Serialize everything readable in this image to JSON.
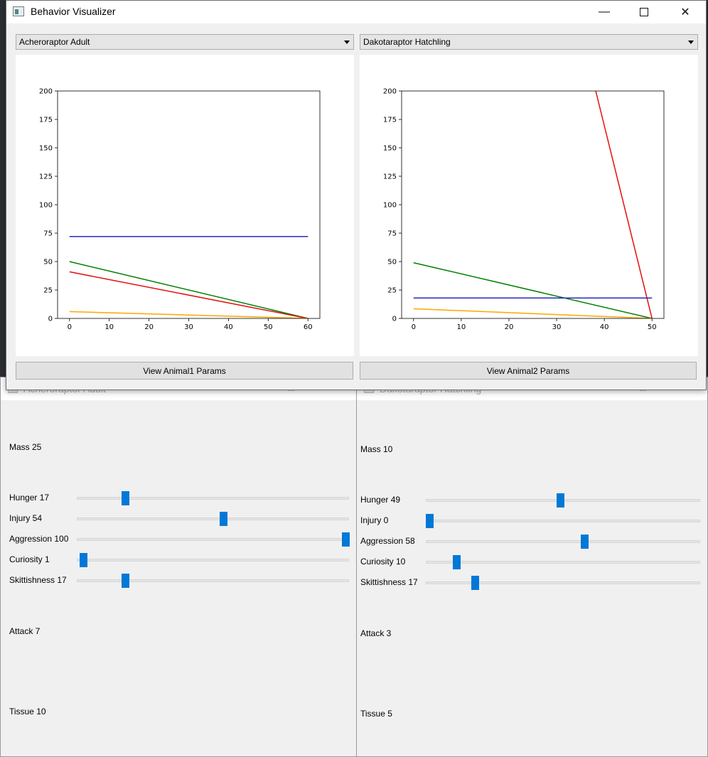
{
  "main_window": {
    "title": "Behavior Visualizer",
    "animal1_select": "Acheroraptor Adult",
    "animal2_select": "Dakotaraptor Hatchling",
    "button1_label": "View Animal1 Params",
    "button2_label": "View Animal2 Params"
  },
  "chart_data": [
    {
      "type": "line",
      "xlim": [
        -3,
        63
      ],
      "ylim": [
        0,
        200
      ],
      "xticks": [
        0,
        10,
        20,
        30,
        40,
        50,
        60
      ],
      "yticks": [
        0,
        25,
        50,
        75,
        100,
        125,
        150,
        175,
        200
      ],
      "xtick_labels": [
        "0",
        "10",
        "20",
        "30",
        "40",
        "50",
        "60"
      ],
      "ytick_labels": [
        "0",
        "25",
        "50",
        "75",
        "100",
        "125",
        "150",
        "175",
        "200"
      ],
      "series": [
        {
          "color": "#2a2ab8",
          "x": [
            0,
            60
          ],
          "y": [
            72,
            72
          ]
        },
        {
          "color": "#008000",
          "x": [
            0,
            60
          ],
          "y": [
            50,
            0
          ]
        },
        {
          "color": "#e01010",
          "x": [
            0,
            60
          ],
          "y": [
            41,
            0
          ]
        },
        {
          "color": "#ffa500",
          "x": [
            0,
            60
          ],
          "y": [
            6,
            0
          ]
        }
      ]
    },
    {
      "type": "line",
      "xlim": [
        -2.5,
        52.5
      ],
      "ylim": [
        0,
        200
      ],
      "xticks": [
        0,
        10,
        20,
        30,
        40,
        50
      ],
      "yticks": [
        0,
        25,
        50,
        75,
        100,
        125,
        150,
        175,
        200
      ],
      "xtick_labels": [
        "0",
        "10",
        "20",
        "30",
        "40",
        "50"
      ],
      "ytick_labels": [
        "0",
        "25",
        "50",
        "75",
        "100",
        "125",
        "150",
        "175",
        "200"
      ],
      "series": [
        {
          "color": "#e01010",
          "x": [
            38.2,
            50
          ],
          "y": [
            200,
            0
          ]
        },
        {
          "color": "#008000",
          "x": [
            0,
            50
          ],
          "y": [
            49,
            0
          ]
        },
        {
          "color": "#2a2ab8",
          "x": [
            0,
            50
          ],
          "y": [
            18,
            18
          ]
        },
        {
          "color": "#ffa500",
          "x": [
            0,
            50
          ],
          "y": [
            8.5,
            0
          ]
        }
      ]
    }
  ],
  "param_window_1": {
    "title": "Acheroraptor Adult",
    "mass_label": "Mass 25",
    "attack_label": "Attack 7",
    "tissue_label": "Tissue 10",
    "sliders": [
      {
        "label": "Hunger 17",
        "value": 17
      },
      {
        "label": "Injury 54",
        "value": 54
      },
      {
        "label": "Aggression 100",
        "value": 100
      },
      {
        "label": "Curiosity 1",
        "value": 1
      },
      {
        "label": "Skittishness 17",
        "value": 17
      }
    ]
  },
  "param_window_2": {
    "title": "Dakotaraptor Hatchling",
    "mass_label": "Mass 10",
    "attack_label": "Attack 3",
    "tissue_label": "Tissue 5",
    "sliders": [
      {
        "label": "Hunger 49",
        "value": 49
      },
      {
        "label": "Injury 0",
        "value": 0
      },
      {
        "label": "Aggression 58",
        "value": 58
      },
      {
        "label": "Curiosity 10",
        "value": 10
      },
      {
        "label": "Skittishness 17",
        "value": 17
      }
    ]
  }
}
